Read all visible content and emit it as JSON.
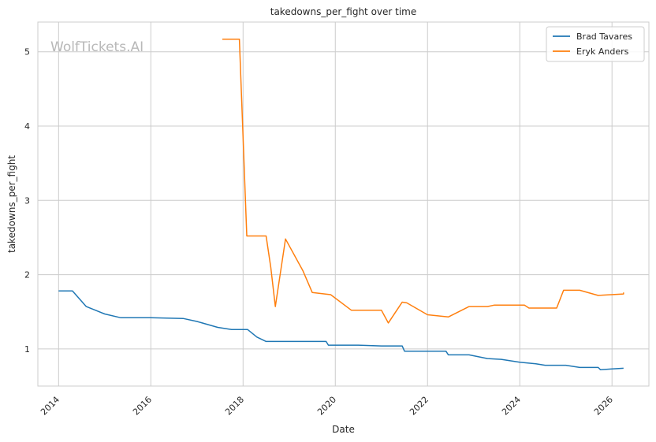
{
  "chart_data": {
    "type": "line",
    "title": "takedowns_per_fight over time",
    "xlabel": "Date",
    "ylabel": "takedowns_per_fight",
    "watermark": "WolfTickets.AI",
    "xlim": [
      2013.55,
      2026.8
    ],
    "ylim": [
      0.5,
      5.4
    ],
    "x_ticks": [
      2014,
      2016,
      2018,
      2020,
      2022,
      2024,
      2026
    ],
    "x_tick_labels": [
      "2014",
      "2016",
      "2018",
      "2020",
      "2022",
      "2024",
      "2026"
    ],
    "y_ticks": [
      1,
      2,
      3,
      4,
      5
    ],
    "y_tick_labels": [
      "1",
      "2",
      "3",
      "4",
      "5"
    ],
    "grid": true,
    "legend_position": "top-right",
    "series": [
      {
        "name": "Brad Tavares",
        "color": "#1f77b4",
        "x": [
          2014.0,
          2014.3,
          2014.6,
          2015.0,
          2015.35,
          2016.0,
          2016.7,
          2017.0,
          2017.45,
          2017.75,
          2018.1,
          2018.3,
          2018.5,
          2019.0,
          2019.5,
          2019.8,
          2019.85,
          2020.5,
          2021.0,
          2021.45,
          2021.5,
          2021.7,
          2022.0,
          2022.4,
          2022.45,
          2022.9,
          2023.3,
          2023.6,
          2024.0,
          2024.35,
          2024.55,
          2025.0,
          2025.3,
          2025.7,
          2025.75,
          2026.0,
          2026.25
        ],
        "y": [
          1.78,
          1.78,
          1.57,
          1.47,
          1.42,
          1.42,
          1.41,
          1.37,
          1.29,
          1.26,
          1.26,
          1.16,
          1.1,
          1.1,
          1.1,
          1.1,
          1.05,
          1.05,
          1.04,
          1.04,
          0.97,
          0.97,
          0.97,
          0.97,
          0.92,
          0.92,
          0.87,
          0.86,
          0.82,
          0.8,
          0.78,
          0.78,
          0.75,
          0.75,
          0.72,
          0.73,
          0.74
        ]
      },
      {
        "name": "Eryk Anders",
        "color": "#ff7f0e",
        "x": [
          2017.55,
          2017.92,
          2018.08,
          2018.5,
          2018.6,
          2018.7,
          2018.92,
          2019.3,
          2019.5,
          2019.9,
          2020.35,
          2021.0,
          2021.15,
          2021.45,
          2021.55,
          2022.0,
          2022.45,
          2022.9,
          2023.3,
          2023.45,
          2024.1,
          2024.2,
          2024.8,
          2024.95,
          2025.3,
          2025.7,
          2026.25,
          2026.25
        ],
        "y": [
          5.17,
          5.17,
          2.52,
          2.52,
          2.1,
          1.57,
          2.48,
          2.05,
          1.76,
          1.73,
          1.52,
          1.52,
          1.35,
          1.63,
          1.62,
          1.46,
          1.43,
          1.57,
          1.57,
          1.59,
          1.59,
          1.55,
          1.55,
          1.79,
          1.79,
          1.72,
          1.74,
          1.76
        ]
      }
    ]
  }
}
